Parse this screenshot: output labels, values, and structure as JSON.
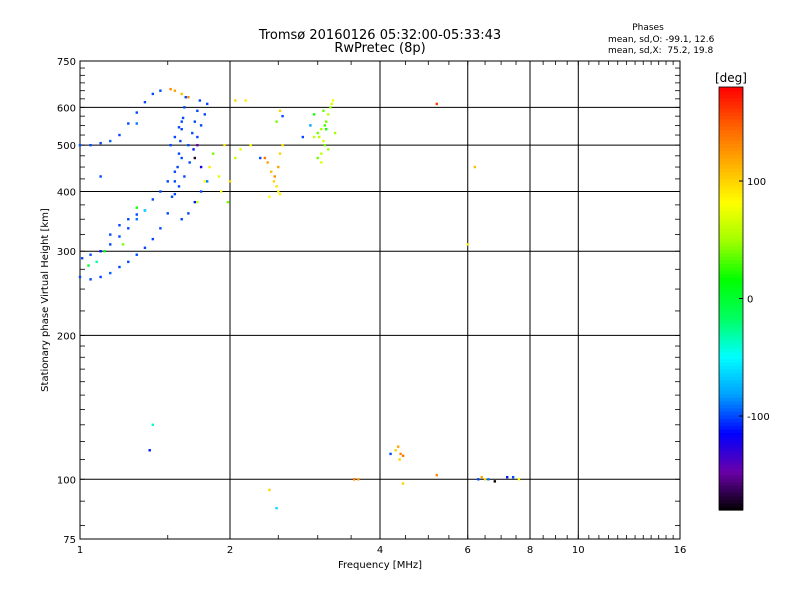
{
  "chart_data": {
    "type": "scatter",
    "title": "Tromsø 20160126 05:32:00-05:33:43",
    "subtitle": "RwPretec (8p)",
    "xlabel": "Frequency [MHz]",
    "ylabel": "Stationary phase Virtual Height [km]",
    "x_scale": "log",
    "y_scale": "log",
    "xlim": [
      1,
      16
    ],
    "ylim": [
      75,
      750
    ],
    "x_ticks": [
      1,
      2,
      4,
      6,
      8,
      10,
      16
    ],
    "y_ticks": [
      75,
      100,
      200,
      300,
      400,
      500,
      600,
      750
    ],
    "grid": true,
    "phases_box": {
      "heading": "Phases",
      "line1": "mean, sd,O: -99.1, 12.6",
      "line2": "mean, sd,X:  75.2, 19.8"
    },
    "colorbar": {
      "label": "[deg]",
      "range": [
        -180,
        180
      ],
      "ticks": [
        100,
        0,
        -100
      ],
      "palette": [
        "#000000",
        "#6a00a8",
        "#0000ff",
        "#00a0ff",
        "#00ffff",
        "#00ff60",
        "#00ff00",
        "#a0ff00",
        "#ffff00",
        "#ffb000",
        "#ff6000",
        "#ff0000"
      ]
    },
    "series": [
      {
        "points": [
          [
            1.0,
            500,
            -100
          ],
          [
            1.05,
            500,
            -100
          ],
          [
            1.1,
            505,
            -100
          ],
          [
            1.15,
            510,
            -95
          ],
          [
            1.2,
            525,
            -100
          ],
          [
            1.25,
            555,
            -100
          ],
          [
            1.3,
            585,
            -100
          ],
          [
            1.35,
            615,
            -100
          ],
          [
            1.4,
            640,
            -100
          ],
          [
            1.45,
            650,
            -100
          ],
          [
            1.1,
            430,
            -100
          ],
          [
            1.3,
            555,
            -90
          ],
          [
            1.52,
            655,
            130
          ],
          [
            1.55,
            650,
            120
          ],
          [
            1.6,
            640,
            110
          ],
          [
            1.65,
            630,
            130
          ],
          [
            1.0,
            265,
            -100
          ],
          [
            1.05,
            262,
            -100
          ],
          [
            1.1,
            265,
            -100
          ],
          [
            1.15,
            270,
            -95
          ],
          [
            1.2,
            278,
            -100
          ],
          [
            1.25,
            285,
            -100
          ],
          [
            1.3,
            295,
            -100
          ],
          [
            1.35,
            305,
            -100
          ],
          [
            1.4,
            318,
            -100
          ],
          [
            1.45,
            335,
            -100
          ],
          [
            1.5,
            360,
            -100
          ],
          [
            1.53,
            390,
            -100
          ],
          [
            1.55,
            420,
            -100
          ],
          [
            1.57,
            450,
            -100
          ],
          [
            1.58,
            480,
            -100
          ],
          [
            1.59,
            510,
            -100
          ],
          [
            1.6,
            540,
            -100
          ],
          [
            1.61,
            570,
            -100
          ],
          [
            1.62,
            600,
            -100
          ],
          [
            1.63,
            630,
            -100
          ],
          [
            1.01,
            290,
            -100
          ],
          [
            1.05,
            295,
            -100
          ],
          [
            1.1,
            300,
            -110
          ],
          [
            1.15,
            310,
            -100
          ],
          [
            1.2,
            322,
            -100
          ],
          [
            1.25,
            335,
            -100
          ],
          [
            1.3,
            350,
            -90
          ],
          [
            1.35,
            365,
            -100
          ],
          [
            1.4,
            385,
            -100
          ],
          [
            1.45,
            400,
            -100
          ],
          [
            1.5,
            420,
            -100
          ],
          [
            1.55,
            440,
            -100
          ],
          [
            1.6,
            470,
            -100
          ],
          [
            1.65,
            500,
            -100
          ],
          [
            1.68,
            530,
            -100
          ],
          [
            1.7,
            560,
            -100
          ],
          [
            1.72,
            590,
            -100
          ],
          [
            1.74,
            620,
            -100
          ],
          [
            1.15,
            325,
            -100
          ],
          [
            1.2,
            340,
            -100
          ],
          [
            1.25,
            350,
            -100
          ],
          [
            1.3,
            358,
            -100
          ],
          [
            1.35,
            365,
            -60
          ],
          [
            1.55,
            395,
            -100
          ],
          [
            1.58,
            410,
            -100
          ],
          [
            1.62,
            430,
            -100
          ],
          [
            1.66,
            460,
            -100
          ],
          [
            1.69,
            490,
            -110
          ],
          [
            1.72,
            520,
            -100
          ],
          [
            1.75,
            550,
            -100
          ],
          [
            1.78,
            580,
            -100
          ],
          [
            1.8,
            610,
            -100
          ],
          [
            1.6,
            350,
            -100
          ],
          [
            1.65,
            360,
            -100
          ],
          [
            1.7,
            380,
            -110
          ],
          [
            1.75,
            400,
            -100
          ],
          [
            1.8,
            420,
            -90
          ],
          [
            1.52,
            500,
            -100
          ],
          [
            1.55,
            520,
            -100
          ],
          [
            1.58,
            545,
            -100
          ],
          [
            1.6,
            560,
            -100
          ],
          [
            1.7,
            470,
            -170
          ],
          [
            1.72,
            500,
            -150
          ],
          [
            1.75,
            450,
            -120
          ],
          [
            1.04,
            280,
            0
          ],
          [
            1.08,
            285,
            -30
          ],
          [
            1.12,
            300,
            10
          ],
          [
            1.22,
            310,
            40
          ],
          [
            1.3,
            370,
            20
          ],
          [
            1.72,
            380,
            60
          ],
          [
            1.78,
            420,
            80
          ],
          [
            1.82,
            450,
            90
          ],
          [
            1.85,
            480,
            40
          ],
          [
            1.9,
            430,
            70
          ],
          [
            1.92,
            400,
            80
          ],
          [
            1.95,
            500,
            90
          ],
          [
            2.0,
            420,
            100
          ],
          [
            2.05,
            470,
            60
          ],
          [
            2.1,
            490,
            70
          ],
          [
            1.98,
            380,
            40
          ],
          [
            2.05,
            620,
            100
          ],
          [
            2.15,
            620,
            90
          ],
          [
            2.2,
            500,
            80
          ],
          [
            2.3,
            470,
            -100
          ],
          [
            2.35,
            470,
            140
          ],
          [
            2.38,
            460,
            120
          ],
          [
            2.42,
            440,
            110
          ],
          [
            2.45,
            420,
            100
          ],
          [
            2.48,
            410,
            95
          ],
          [
            2.5,
            400,
            90
          ],
          [
            2.52,
            395,
            85
          ],
          [
            2.4,
            390,
            80
          ],
          [
            2.46,
            430,
            130
          ],
          [
            2.5,
            450,
            120
          ],
          [
            2.52,
            480,
            100
          ],
          [
            2.55,
            500,
            90
          ],
          [
            2.48,
            560,
            40
          ],
          [
            2.52,
            590,
            100
          ],
          [
            2.55,
            575,
            -100
          ],
          [
            3.0,
            530,
            40
          ],
          [
            3.02,
            520,
            60
          ],
          [
            3.05,
            540,
            50
          ],
          [
            3.08,
            510,
            70
          ],
          [
            3.1,
            550,
            30
          ],
          [
            3.12,
            560,
            40
          ],
          [
            3.15,
            580,
            60
          ],
          [
            3.18,
            600,
            50
          ],
          [
            3.2,
            610,
            70
          ],
          [
            3.22,
            620,
            80
          ],
          [
            3.0,
            470,
            40
          ],
          [
            3.05,
            480,
            60
          ],
          [
            3.1,
            500,
            40
          ],
          [
            3.15,
            490,
            50
          ],
          [
            3.05,
            460,
            70
          ],
          [
            2.95,
            520,
            60
          ],
          [
            2.9,
            550,
            -80
          ],
          [
            2.95,
            580,
            20
          ],
          [
            3.08,
            590,
            40
          ],
          [
            3.12,
            540,
            20
          ],
          [
            2.8,
            520,
            -100
          ],
          [
            3.25,
            530,
            50
          ],
          [
            5.2,
            610,
            160
          ],
          [
            6.0,
            310,
            90
          ],
          [
            6.2,
            450,
            110
          ],
          [
            1.4,
            130,
            -40
          ],
          [
            1.38,
            115,
            -110
          ],
          [
            2.4,
            95,
            100
          ],
          [
            2.48,
            87,
            -60
          ],
          [
            3.55,
            100,
            140
          ],
          [
            3.62,
            100,
            120
          ],
          [
            4.2,
            113,
            -100
          ],
          [
            4.3,
            115,
            100
          ],
          [
            4.35,
            117,
            120
          ],
          [
            4.4,
            113,
            130
          ],
          [
            4.45,
            112,
            140
          ],
          [
            4.38,
            110,
            100
          ],
          [
            4.45,
            98,
            100
          ],
          [
            5.2,
            102,
            130
          ],
          [
            6.3,
            100,
            -100
          ],
          [
            6.4,
            101,
            120
          ],
          [
            6.5,
            100,
            100
          ],
          [
            6.6,
            100,
            -90
          ],
          [
            6.8,
            99,
            -180
          ],
          [
            7.2,
            101,
            -110
          ],
          [
            7.4,
            101,
            -100
          ],
          [
            7.6,
            100,
            80
          ]
        ]
      }
    ]
  }
}
